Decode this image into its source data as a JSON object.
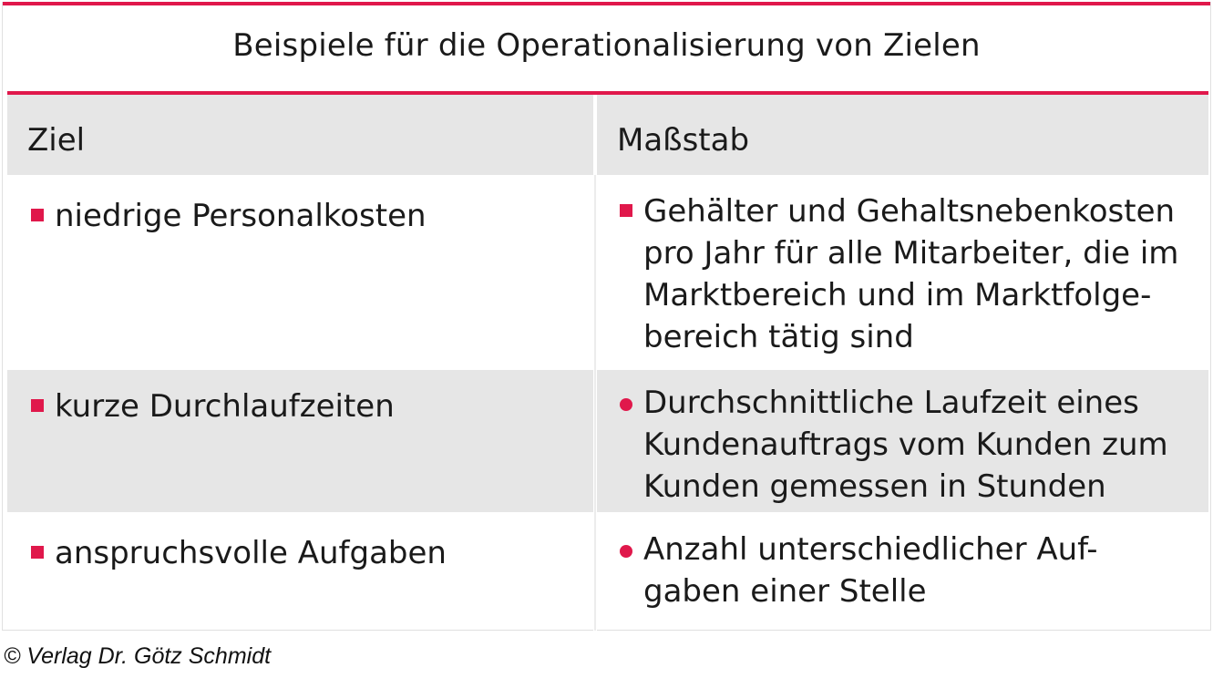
{
  "title": "Beispiele für die Operationalisierung von Zielen",
  "header": {
    "col1": "Ziel",
    "col2": "Maßstab"
  },
  "rows": [
    {
      "ziel": "niedrige Personalkosten",
      "massstab": "Gehälter und Gehaltsnebenkosten\npro Jahr für alle Mitarbeiter, die im\nMarktbereich und im Marktfolge-\nbereich tätig sind",
      "massstab_bullet": "square"
    },
    {
      "ziel": "kurze Durchlaufzeiten",
      "massstab": "Durchschnittliche Laufzeit eines\nKundenauftrags vom Kunden zum\nKunden gemessen in Stunden",
      "massstab_bullet": "dot"
    },
    {
      "ziel": "anspruchsvolle Aufgaben",
      "massstab": "Anzahl unterschiedlicher Auf-\ngaben einer Stelle",
      "massstab_bullet": "dot"
    }
  ],
  "colors": {
    "accent": "#e0184b",
    "row_shade": "#e6e6e6"
  },
  "copyright": "© Verlag Dr. Götz Schmidt"
}
